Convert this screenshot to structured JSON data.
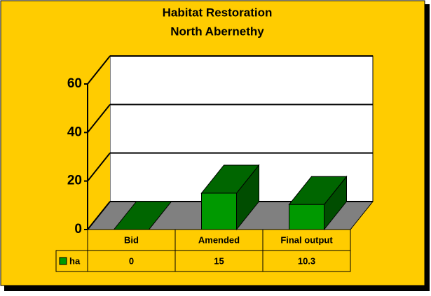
{
  "chart_data": {
    "type": "bar3d",
    "title": "Habitat Restoration",
    "subtitle": "North Abernethy",
    "categories": [
      "Bid",
      "Amended",
      "Final output"
    ],
    "series": [
      {
        "name": "ha",
        "color": "#009900",
        "values": [
          0,
          15,
          10.3
        ]
      }
    ],
    "ylim": [
      0,
      60
    ],
    "yticks": [
      0,
      20,
      40,
      60
    ],
    "grid": true
  }
}
